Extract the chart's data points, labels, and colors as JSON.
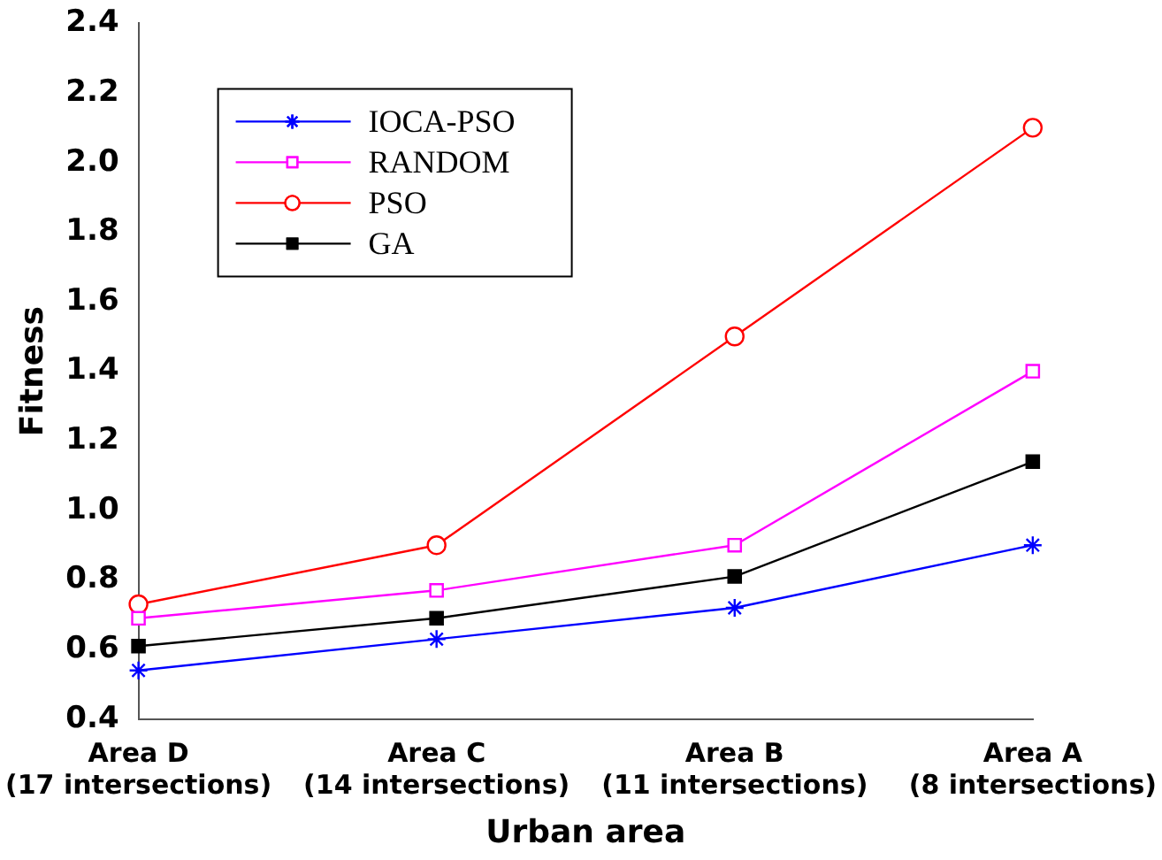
{
  "chart_data": {
    "type": "line",
    "xlabel": "Urban area",
    "ylabel": "Fitness",
    "categories": [
      "Area D\n(17 intersections)",
      "Area C\n(14 intersections)",
      "Area B\n(11 intersections)",
      "Area A\n(8 intersections)"
    ],
    "series": [
      {
        "name": "IOCA-PSO",
        "color": "#0000ff",
        "marker": "cross",
        "values": [
          0.54,
          0.63,
          0.72,
          0.9
        ]
      },
      {
        "name": "RANDOM",
        "color": "#ff00ff",
        "marker": "square",
        "values": [
          0.69,
          0.77,
          0.9,
          1.4
        ]
      },
      {
        "name": "PSO",
        "color": "#ff0000",
        "marker": "circle",
        "values": [
          0.73,
          0.9,
          1.5,
          2.1
        ]
      },
      {
        "name": "GA",
        "color": "#000000",
        "marker": "square",
        "values": [
          0.61,
          0.69,
          0.81,
          1.14
        ]
      }
    ],
    "ylim": [
      0.4,
      2.4
    ],
    "yticks": [
      0.4,
      0.6,
      0.8,
      {
        "value": 1,
        "label": "1.0"
      },
      1.2,
      1.4,
      1.6,
      1.8,
      {
        "value": 2,
        "label": "2.0"
      },
      2.2,
      2.4
    ],
    "grid": false,
    "legend": "top left",
    "line_style": "solid"
  }
}
